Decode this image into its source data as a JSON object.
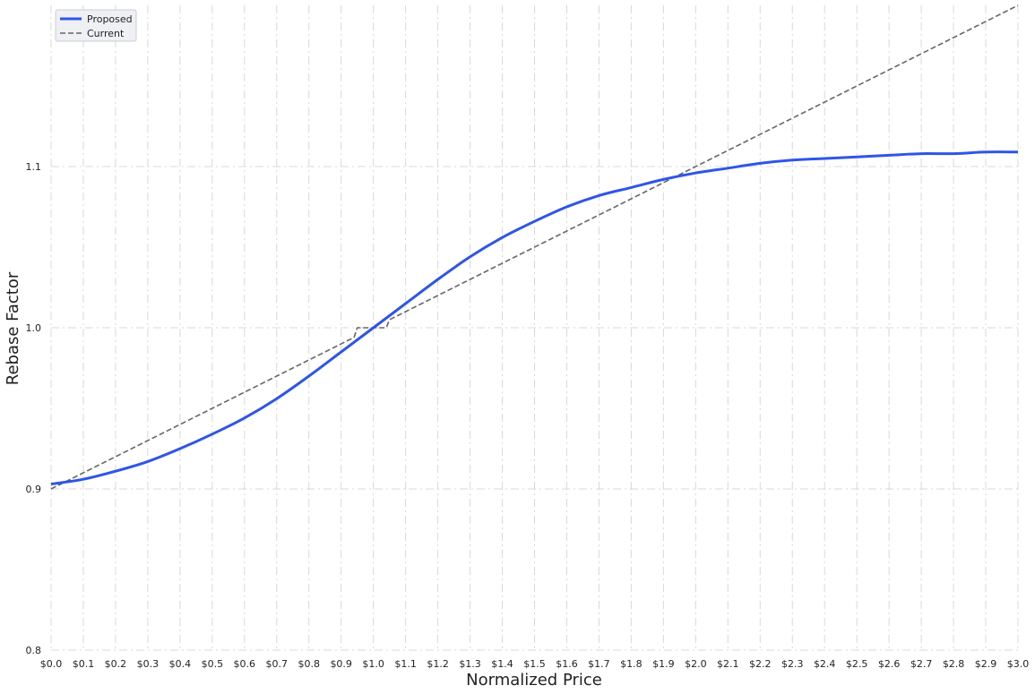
{
  "chart_data": {
    "type": "line",
    "title": "",
    "xlabel": "Normalized Price",
    "ylabel": "Rebase Factor",
    "xlim": [
      0.0,
      3.0
    ],
    "ylim": [
      0.8,
      1.2
    ],
    "x_ticks": [
      0.0,
      0.1,
      0.2,
      0.3,
      0.4,
      0.5,
      0.6,
      0.7,
      0.8,
      0.9,
      1.0,
      1.1,
      1.2,
      1.3,
      1.4,
      1.5,
      1.6,
      1.7,
      1.8,
      1.9,
      2.0,
      2.1,
      2.2,
      2.3,
      2.4,
      2.5,
      2.6,
      2.7,
      2.8,
      2.9,
      3.0
    ],
    "x_tick_labels": [
      "$0.0",
      "$0.1",
      "$0.2",
      "$0.3",
      "$0.4",
      "$0.5",
      "$0.6",
      "$0.7",
      "$0.8",
      "$0.9",
      "$1.0",
      "$1.1",
      "$1.2",
      "$1.3",
      "$1.4",
      "$1.5",
      "$1.6",
      "$1.7",
      "$1.8",
      "$1.9",
      "$2.0",
      "$2.1",
      "$2.2",
      "$2.3",
      "$2.4",
      "$2.5",
      "$2.6",
      "$2.7",
      "$2.8",
      "$2.9",
      "$3.0"
    ],
    "y_ticks": [
      0.8,
      0.9,
      1.0,
      1.1
    ],
    "y_tick_labels": [
      "0.8",
      "0.9",
      "1.0",
      "1.1"
    ],
    "grid": true,
    "legend_position": "top-left",
    "series": [
      {
        "name": "Proposed",
        "color": "#2f55e8",
        "style": "solid",
        "x": [
          0.0,
          0.1,
          0.2,
          0.3,
          0.4,
          0.5,
          0.6,
          0.7,
          0.8,
          0.9,
          1.0,
          1.1,
          1.2,
          1.3,
          1.4,
          1.5,
          1.6,
          1.7,
          1.8,
          1.9,
          2.0,
          2.1,
          2.2,
          2.3,
          2.4,
          2.5,
          2.6,
          2.7,
          2.8,
          2.9,
          3.0
        ],
        "y": [
          0.903,
          0.906,
          0.911,
          0.917,
          0.925,
          0.934,
          0.944,
          0.956,
          0.97,
          0.985,
          1.0,
          1.015,
          1.03,
          1.044,
          1.056,
          1.066,
          1.075,
          1.082,
          1.087,
          1.092,
          1.096,
          1.099,
          1.102,
          1.104,
          1.105,
          1.106,
          1.107,
          1.108,
          1.108,
          1.109,
          1.109
        ]
      },
      {
        "name": "Current",
        "color": "#666666",
        "style": "dashed",
        "x": [
          0.0,
          0.94,
          0.95,
          1.04,
          1.05,
          3.0
        ],
        "y": [
          0.9,
          0.994,
          1.0,
          1.0,
          1.005,
          1.2
        ]
      }
    ]
  }
}
